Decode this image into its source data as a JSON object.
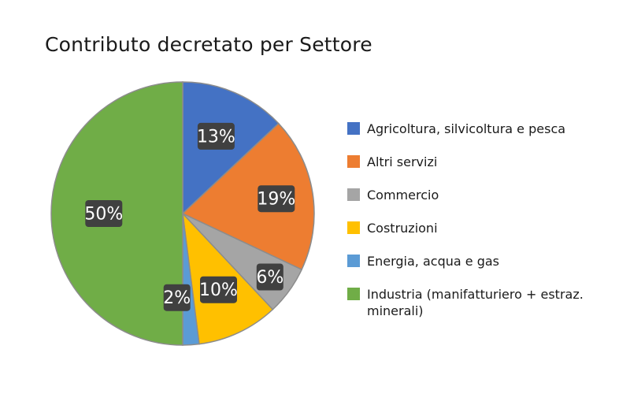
{
  "chart_data": {
    "type": "pie",
    "title": "Contributo decretato per Settore",
    "categories": [
      "Agricoltura, silvicoltura e pesca",
      "Altri servizi",
      "Commercio",
      "Costruzioni",
      "Energia, acqua e gas",
      "Industria (manifatturiero + estraz. minerali)"
    ],
    "values": [
      13,
      19,
      6,
      10,
      2,
      50
    ],
    "data_labels": [
      "13%",
      "19%",
      "6%",
      "10%",
      "2%",
      "50%"
    ],
    "colors": [
      "#4472C4",
      "#ED7D31",
      "#A5A5A5",
      "#FFC000",
      "#5B9BD5",
      "#70AD47"
    ],
    "legend_position": "right",
    "grid": false
  }
}
